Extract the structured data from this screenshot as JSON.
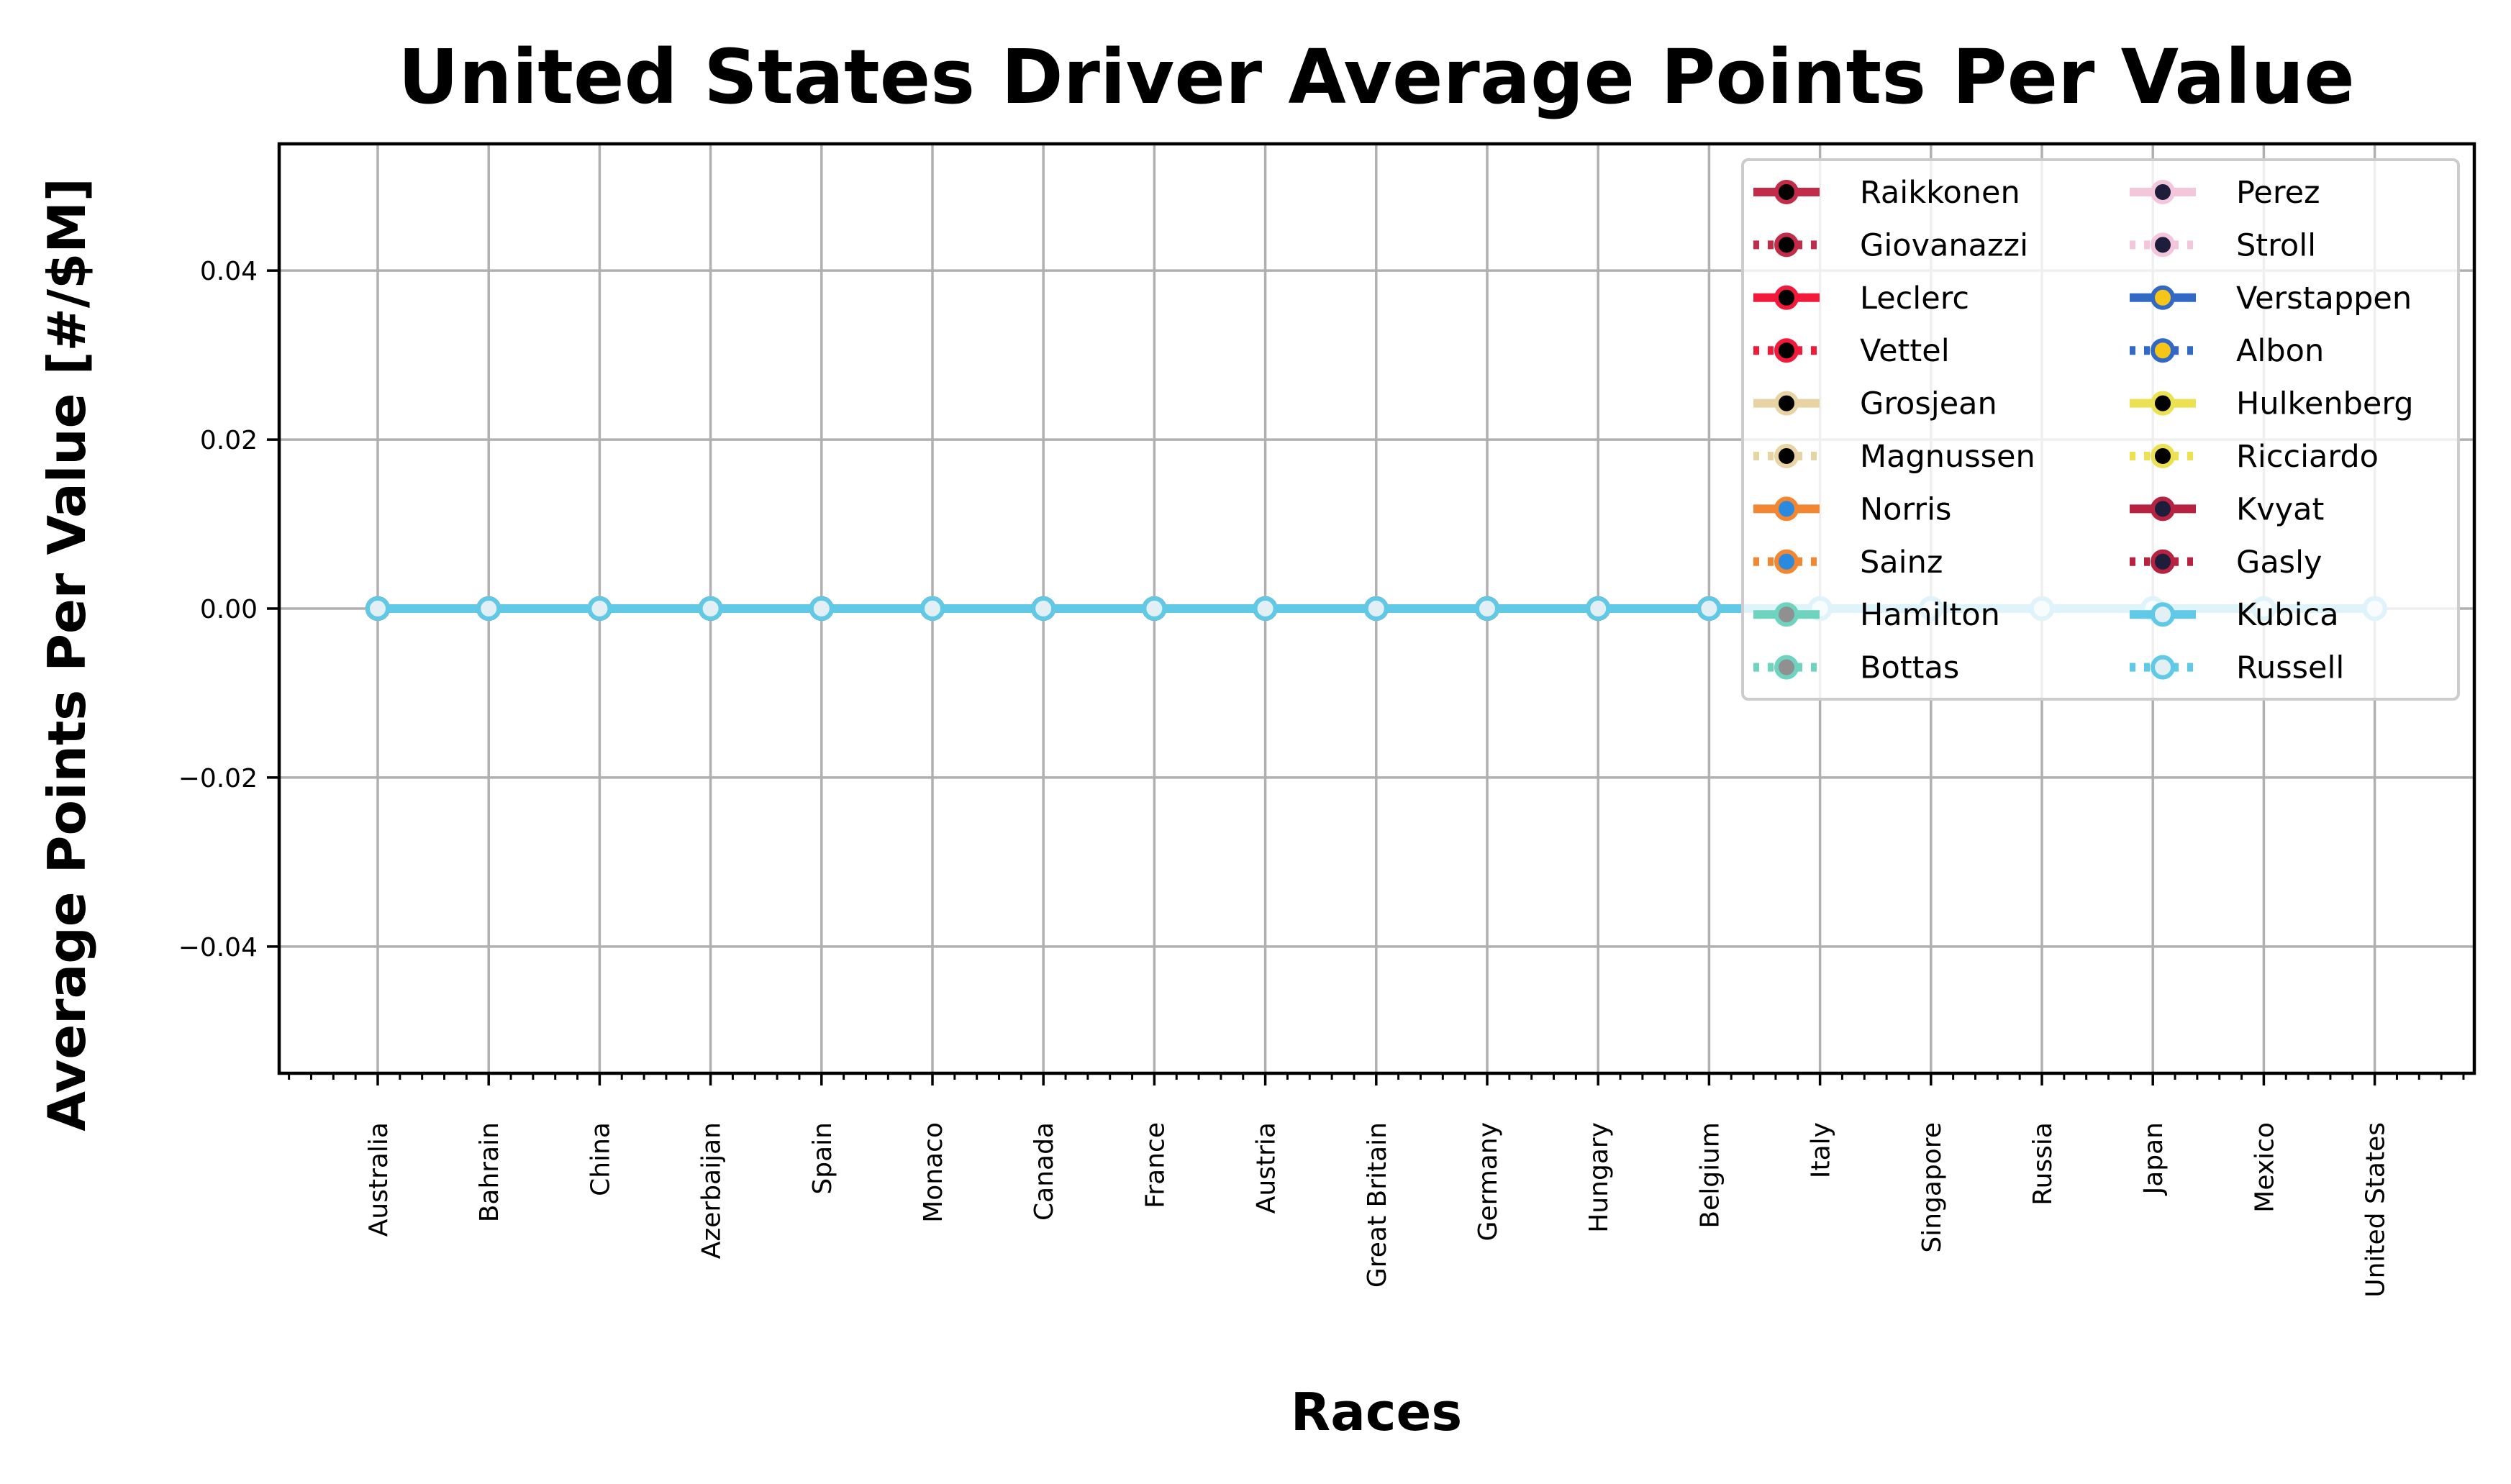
{
  "chart_data": {
    "type": "line",
    "title": "United States Driver Average Points Per Value",
    "xlabel": "Races",
    "ylabel": "Average Points Per Value [#/$M]",
    "categories": [
      "Australia",
      "Bahrain",
      "China",
      "Azerbaijan",
      "Spain",
      "Monaco",
      "Canada",
      "France",
      "Austria",
      "Great Britain",
      "Germany",
      "Hungary",
      "Belgium",
      "Italy",
      "Singapore",
      "Russia",
      "Japan",
      "Mexico",
      "United States"
    ],
    "ylim": [
      -0.055,
      0.055
    ],
    "yticks": [
      -0.04,
      -0.02,
      0.0,
      0.02,
      0.04
    ],
    "ytick_labels": [
      "−0.04",
      "−0.02",
      "0.00",
      "0.02",
      "0.04"
    ],
    "grid": true,
    "legend_position": "top-right",
    "legend_columns": 2,
    "series": [
      {
        "name": "Raikkonen",
        "color": "#c32c48",
        "marker_fill": "#000000",
        "linestyle": "solid",
        "values": [
          0,
          0,
          0,
          0,
          0,
          0,
          0,
          0,
          0,
          0,
          0,
          0,
          0,
          0,
          0,
          0,
          0,
          0,
          0
        ]
      },
      {
        "name": "Giovanazzi",
        "color": "#c32c48",
        "marker_fill": "#000000",
        "linestyle": "dotted",
        "values": [
          0,
          0,
          0,
          0,
          0,
          0,
          0,
          0,
          0,
          0,
          0,
          0,
          0,
          0,
          0,
          0,
          0,
          0,
          0
        ]
      },
      {
        "name": "Leclerc",
        "color": "#f3193b",
        "marker_fill": "#000000",
        "linestyle": "solid",
        "values": [
          0,
          0,
          0,
          0,
          0,
          0,
          0,
          0,
          0,
          0,
          0,
          0,
          0,
          0,
          0,
          0,
          0,
          0,
          0
        ]
      },
      {
        "name": "Vettel",
        "color": "#f3193b",
        "marker_fill": "#000000",
        "linestyle": "dotted",
        "values": [
          0,
          0,
          0,
          0,
          0,
          0,
          0,
          0,
          0,
          0,
          0,
          0,
          0,
          0,
          0,
          0,
          0,
          0,
          0
        ]
      },
      {
        "name": "Grosjean",
        "color": "#e8d3a4",
        "marker_fill": "#000000",
        "linestyle": "solid",
        "values": [
          0,
          0,
          0,
          0,
          0,
          0,
          0,
          0,
          0,
          0,
          0,
          0,
          0,
          0,
          0,
          0,
          0,
          0,
          0
        ]
      },
      {
        "name": "Magnussen",
        "color": "#e8d3a4",
        "marker_fill": "#000000",
        "linestyle": "dotted",
        "values": [
          0,
          0,
          0,
          0,
          0,
          0,
          0,
          0,
          0,
          0,
          0,
          0,
          0,
          0,
          0,
          0,
          0,
          0,
          0
        ]
      },
      {
        "name": "Norris",
        "color": "#f28631",
        "marker_fill": "#2a8ae0",
        "linestyle": "solid",
        "values": [
          0,
          0,
          0,
          0,
          0,
          0,
          0,
          0,
          0,
          0,
          0,
          0,
          0,
          0,
          0,
          0,
          0,
          0,
          0
        ]
      },
      {
        "name": "Sainz",
        "color": "#f28631",
        "marker_fill": "#2a8ae0",
        "linestyle": "dotted",
        "values": [
          0,
          0,
          0,
          0,
          0,
          0,
          0,
          0,
          0,
          0,
          0,
          0,
          0,
          0,
          0,
          0,
          0,
          0,
          0
        ]
      },
      {
        "name": "Hamilton",
        "color": "#6ed4c0",
        "marker_fill": "#909090",
        "linestyle": "solid",
        "values": [
          0,
          0,
          0,
          0,
          0,
          0,
          0,
          0,
          0,
          0,
          0,
          0,
          0,
          0,
          0,
          0,
          0,
          0,
          0
        ]
      },
      {
        "name": "Bottas",
        "color": "#6ed4c0",
        "marker_fill": "#909090",
        "linestyle": "dotted",
        "values": [
          0,
          0,
          0,
          0,
          0,
          0,
          0,
          0,
          0,
          0,
          0,
          0,
          0,
          0,
          0,
          0,
          0,
          0,
          0
        ]
      },
      {
        "name": "Perez",
        "color": "#f3c6dc",
        "marker_fill": "#1e1e3c",
        "linestyle": "solid",
        "values": [
          0,
          0,
          0,
          0,
          0,
          0,
          0,
          0,
          0,
          0,
          0,
          0,
          0,
          0,
          0,
          0,
          0,
          0,
          0
        ]
      },
      {
        "name": "Stroll",
        "color": "#f3c6dc",
        "marker_fill": "#1e1e3c",
        "linestyle": "dotted",
        "values": [
          0,
          0,
          0,
          0,
          0,
          0,
          0,
          0,
          0,
          0,
          0,
          0,
          0,
          0,
          0,
          0,
          0,
          0,
          0
        ]
      },
      {
        "name": "Verstappen",
        "color": "#3269c4",
        "marker_fill": "#f5c518",
        "linestyle": "solid",
        "values": [
          0,
          0,
          0,
          0,
          0,
          0,
          0,
          0,
          0,
          0,
          0,
          0,
          0,
          0,
          0,
          0,
          0,
          0,
          0
        ]
      },
      {
        "name": "Albon",
        "color": "#3269c4",
        "marker_fill": "#f5c518",
        "linestyle": "dotted",
        "values": [
          0,
          0,
          0,
          0,
          0,
          0,
          0,
          0,
          0,
          0,
          0,
          0,
          0,
          0,
          0,
          0,
          0,
          0,
          0
        ]
      },
      {
        "name": "Hulkenberg",
        "color": "#ece152",
        "marker_fill": "#000000",
        "linestyle": "solid",
        "values": [
          0,
          0,
          0,
          0,
          0,
          0,
          0,
          0,
          0,
          0,
          0,
          0,
          0,
          0,
          0,
          0,
          0,
          0,
          0
        ]
      },
      {
        "name": "Ricciardo",
        "color": "#ece152",
        "marker_fill": "#000000",
        "linestyle": "dotted",
        "values": [
          0,
          0,
          0,
          0,
          0,
          0,
          0,
          0,
          0,
          0,
          0,
          0,
          0,
          0,
          0,
          0,
          0,
          0,
          0
        ]
      },
      {
        "name": "Kvyat",
        "color": "#b62240",
        "marker_fill": "#1e1e3c",
        "linestyle": "solid",
        "values": [
          0,
          0,
          0,
          0,
          0,
          0,
          0,
          0,
          0,
          0,
          0,
          0,
          0,
          0,
          0,
          0,
          0,
          0,
          0
        ]
      },
      {
        "name": "Gasly",
        "color": "#b62240",
        "marker_fill": "#1e1e3c",
        "linestyle": "dotted",
        "values": [
          0,
          0,
          0,
          0,
          0,
          0,
          0,
          0,
          0,
          0,
          0,
          0,
          0,
          0,
          0,
          0,
          0,
          0,
          0
        ]
      },
      {
        "name": "Kubica",
        "color": "#5fc9e6",
        "marker_fill": "#e2eff5",
        "linestyle": "solid",
        "values": [
          0,
          0,
          0,
          0,
          0,
          0,
          0,
          0,
          0,
          0,
          0,
          0,
          0,
          0,
          0,
          0,
          0,
          0,
          0
        ]
      },
      {
        "name": "Russell",
        "color": "#5fc9e6",
        "marker_fill": "#e2eff5",
        "linestyle": "dotted",
        "values": [
          0,
          0,
          0,
          0,
          0,
          0,
          0,
          0,
          0,
          0,
          0,
          0,
          0,
          0,
          0,
          0,
          0,
          0,
          0
        ]
      }
    ]
  }
}
